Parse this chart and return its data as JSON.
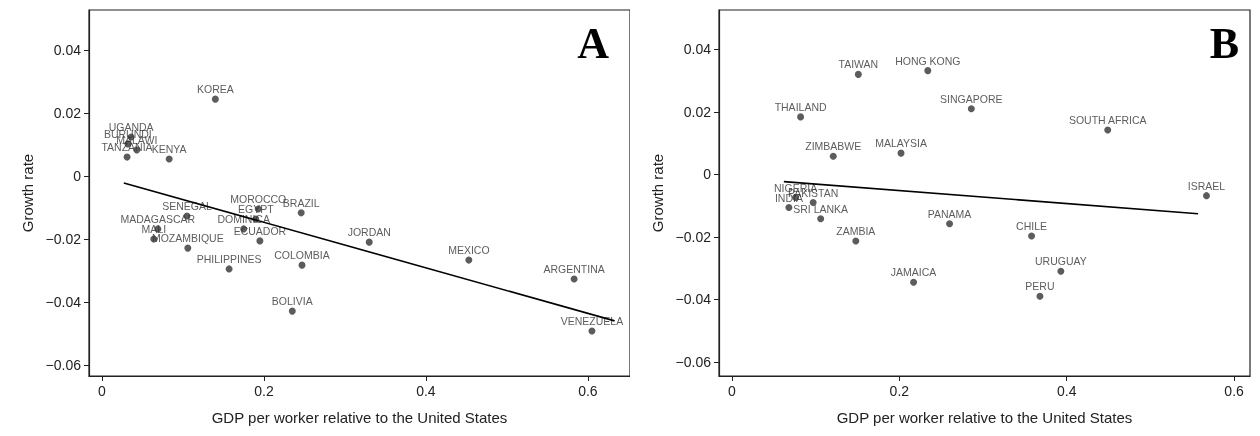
{
  "chart_data": [
    {
      "type": "scatter",
      "title": "A",
      "xlabel": "GDP per worker relative to the United States",
      "ylabel": "Growth rate",
      "xlim": [
        -0.016,
        0.652
      ],
      "ylim": [
        -0.0635,
        0.0527
      ],
      "xticks": [
        0,
        0.2,
        0.4,
        0.6
      ],
      "yticks": [
        {
          "value": -0.06,
          "label": "−0.06"
        },
        {
          "value": -0.04,
          "label": "−0.04"
        },
        {
          "value": -0.02,
          "label": "−0.02"
        },
        0,
        0.02,
        0.04
      ],
      "grid": false,
      "series": [
        {
          "color": "#333333",
          "marker": "circle",
          "x": [
            0.14,
            0.036,
            0.032,
            0.043,
            0.031,
            0.083,
            0.105,
            0.193,
            0.19,
            0.246,
            0.069,
            0.175,
            0.064,
            0.195,
            0.106,
            0.33,
            0.157,
            0.247,
            0.453,
            0.583,
            0.235,
            0.605
          ],
          "values": [
            0.0244,
            0.0124,
            0.0102,
            0.0083,
            0.006,
            0.0054,
            -0.0127,
            -0.0105,
            -0.0137,
            -0.0117,
            -0.0168,
            -0.0168,
            -0.02,
            -0.0206,
            -0.0229,
            -0.021,
            -0.0295,
            -0.0283,
            -0.0267,
            -0.0327,
            -0.0429,
            -0.0492
          ],
          "value_labels": [
            "KOREA",
            "UGANDA",
            "BURUNDI",
            "MALAWI",
            "TANZANIA",
            "KENYA",
            "SENEGAL",
            "MOROCCO",
            "EGYPT",
            "BRAZIL",
            "MADAGASCAR",
            "DOMINICA",
            "MALI",
            "ECUADOR",
            "MOZAMBIQUE",
            "JORDAN",
            "PHILIPPINES",
            "COLOMBIA",
            "MEXICO",
            "ARGENTINA",
            "BOLIVIA",
            "VENEZUELA"
          ]
        },
        {
          "type": "line",
          "color": "#000000",
          "x": [
            0.027,
            0.633
          ],
          "values": [
            -0.0022,
            -0.046
          ]
        }
      ]
    },
    {
      "type": "scatter",
      "title": "B",
      "xlabel": "GDP per worker relative to the United States",
      "ylabel": "Growth rate",
      "xlim": [
        -0.0155,
        0.619
      ],
      "ylim": [
        -0.0645,
        0.0526
      ],
      "xticks": [
        0,
        0.2,
        0.4,
        0.6
      ],
      "yticks": [
        {
          "value": -0.06,
          "label": "−0.06"
        },
        {
          "value": -0.04,
          "label": "−0.04"
        },
        {
          "value": -0.02,
          "label": "−0.02"
        },
        0,
        0.02,
        0.04
      ],
      "grid": false,
      "series": [
        {
          "color": "#333333",
          "marker": "circle",
          "x": [
            0.151,
            0.234,
            0.082,
            0.286,
            0.449,
            0.121,
            0.202,
            0.567,
            0.076,
            0.097,
            0.068,
            0.106,
            0.26,
            0.358,
            0.148,
            0.393,
            0.217,
            0.368
          ],
          "values": [
            0.032,
            0.0332,
            0.0184,
            0.021,
            0.0142,
            0.0058,
            0.0068,
            -0.0068,
            -0.0074,
            -0.009,
            -0.0106,
            -0.0142,
            -0.0158,
            -0.0197,
            -0.0213,
            -0.031,
            -0.0345,
            -0.039
          ],
          "value_labels": [
            "TAIWAN",
            "HONG KONG",
            "THAILAND",
            "SINGAPORE",
            "SOUTH AFRICA",
            "ZIMBABWE",
            "MALAYSIA",
            "ISRAEL",
            "NIGERIA",
            "PAKISTAN",
            "INDIA",
            "SRI LANKA",
            "PANAMA",
            "CHILE",
            "ZAMBIA",
            "URUGUAY",
            "JAMAICA",
            "PERU"
          ]
        },
        {
          "type": "line",
          "color": "#000000",
          "x": [
            0.062,
            0.557
          ],
          "values": [
            -0.0023,
            -0.0126
          ]
        }
      ]
    }
  ]
}
